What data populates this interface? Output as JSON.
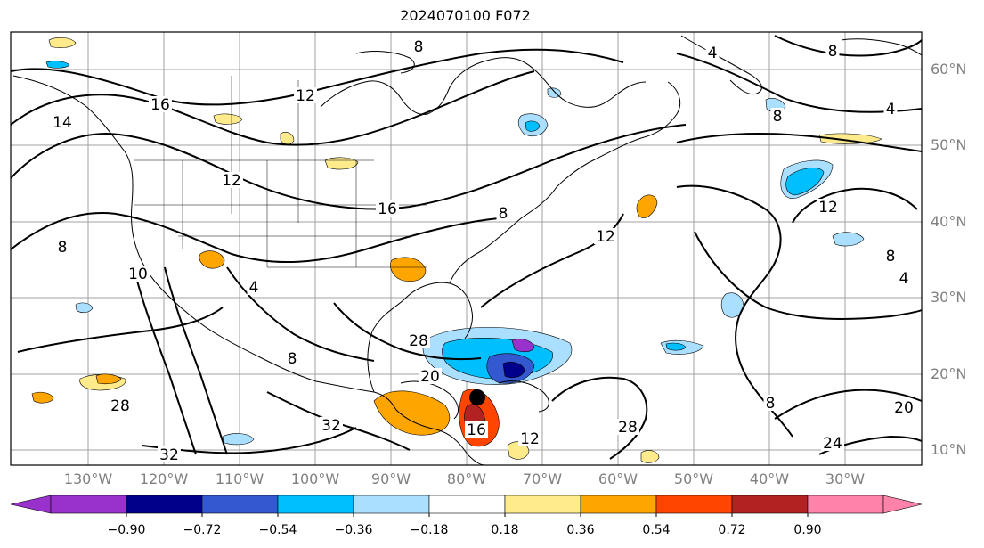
{
  "title": "2024070100 F072",
  "lat_labels": [
    "60°N",
    "50°N",
    "40°N",
    "30°N",
    "20°N",
    "10°N"
  ],
  "lon_labels": [
    "130°W",
    "120°W",
    "110°W",
    "100°W",
    "90°W",
    "80°W",
    "70°W",
    "60°W",
    "50°W",
    "40°W",
    "30°W"
  ],
  "contour_labels": [
    "8",
    "4",
    "8",
    "8",
    "4",
    "12",
    "16",
    "14",
    "12",
    "16",
    "8",
    "12",
    "10",
    "8",
    "4",
    "8",
    "32",
    "32",
    "28",
    "28",
    "20",
    "8",
    "12",
    "28",
    "20",
    "24",
    "8",
    "4",
    "12",
    "16"
  ],
  "colorbar": {
    "ticks": [
      "−0.90",
      "−0.72",
      "−0.54",
      "−0.36",
      "−0.18",
      "0.18",
      "0.36",
      "0.54",
      "0.72",
      "0.90"
    ],
    "colors": [
      "#9932cc",
      "#00008b",
      "#3458d0",
      "#00bfff",
      "#aadfff",
      "#ffffff",
      "#ffeb8c",
      "#ffa500",
      "#ff4500",
      "#b22222",
      "#ff82ab"
    ]
  },
  "marker": "storm-center"
}
